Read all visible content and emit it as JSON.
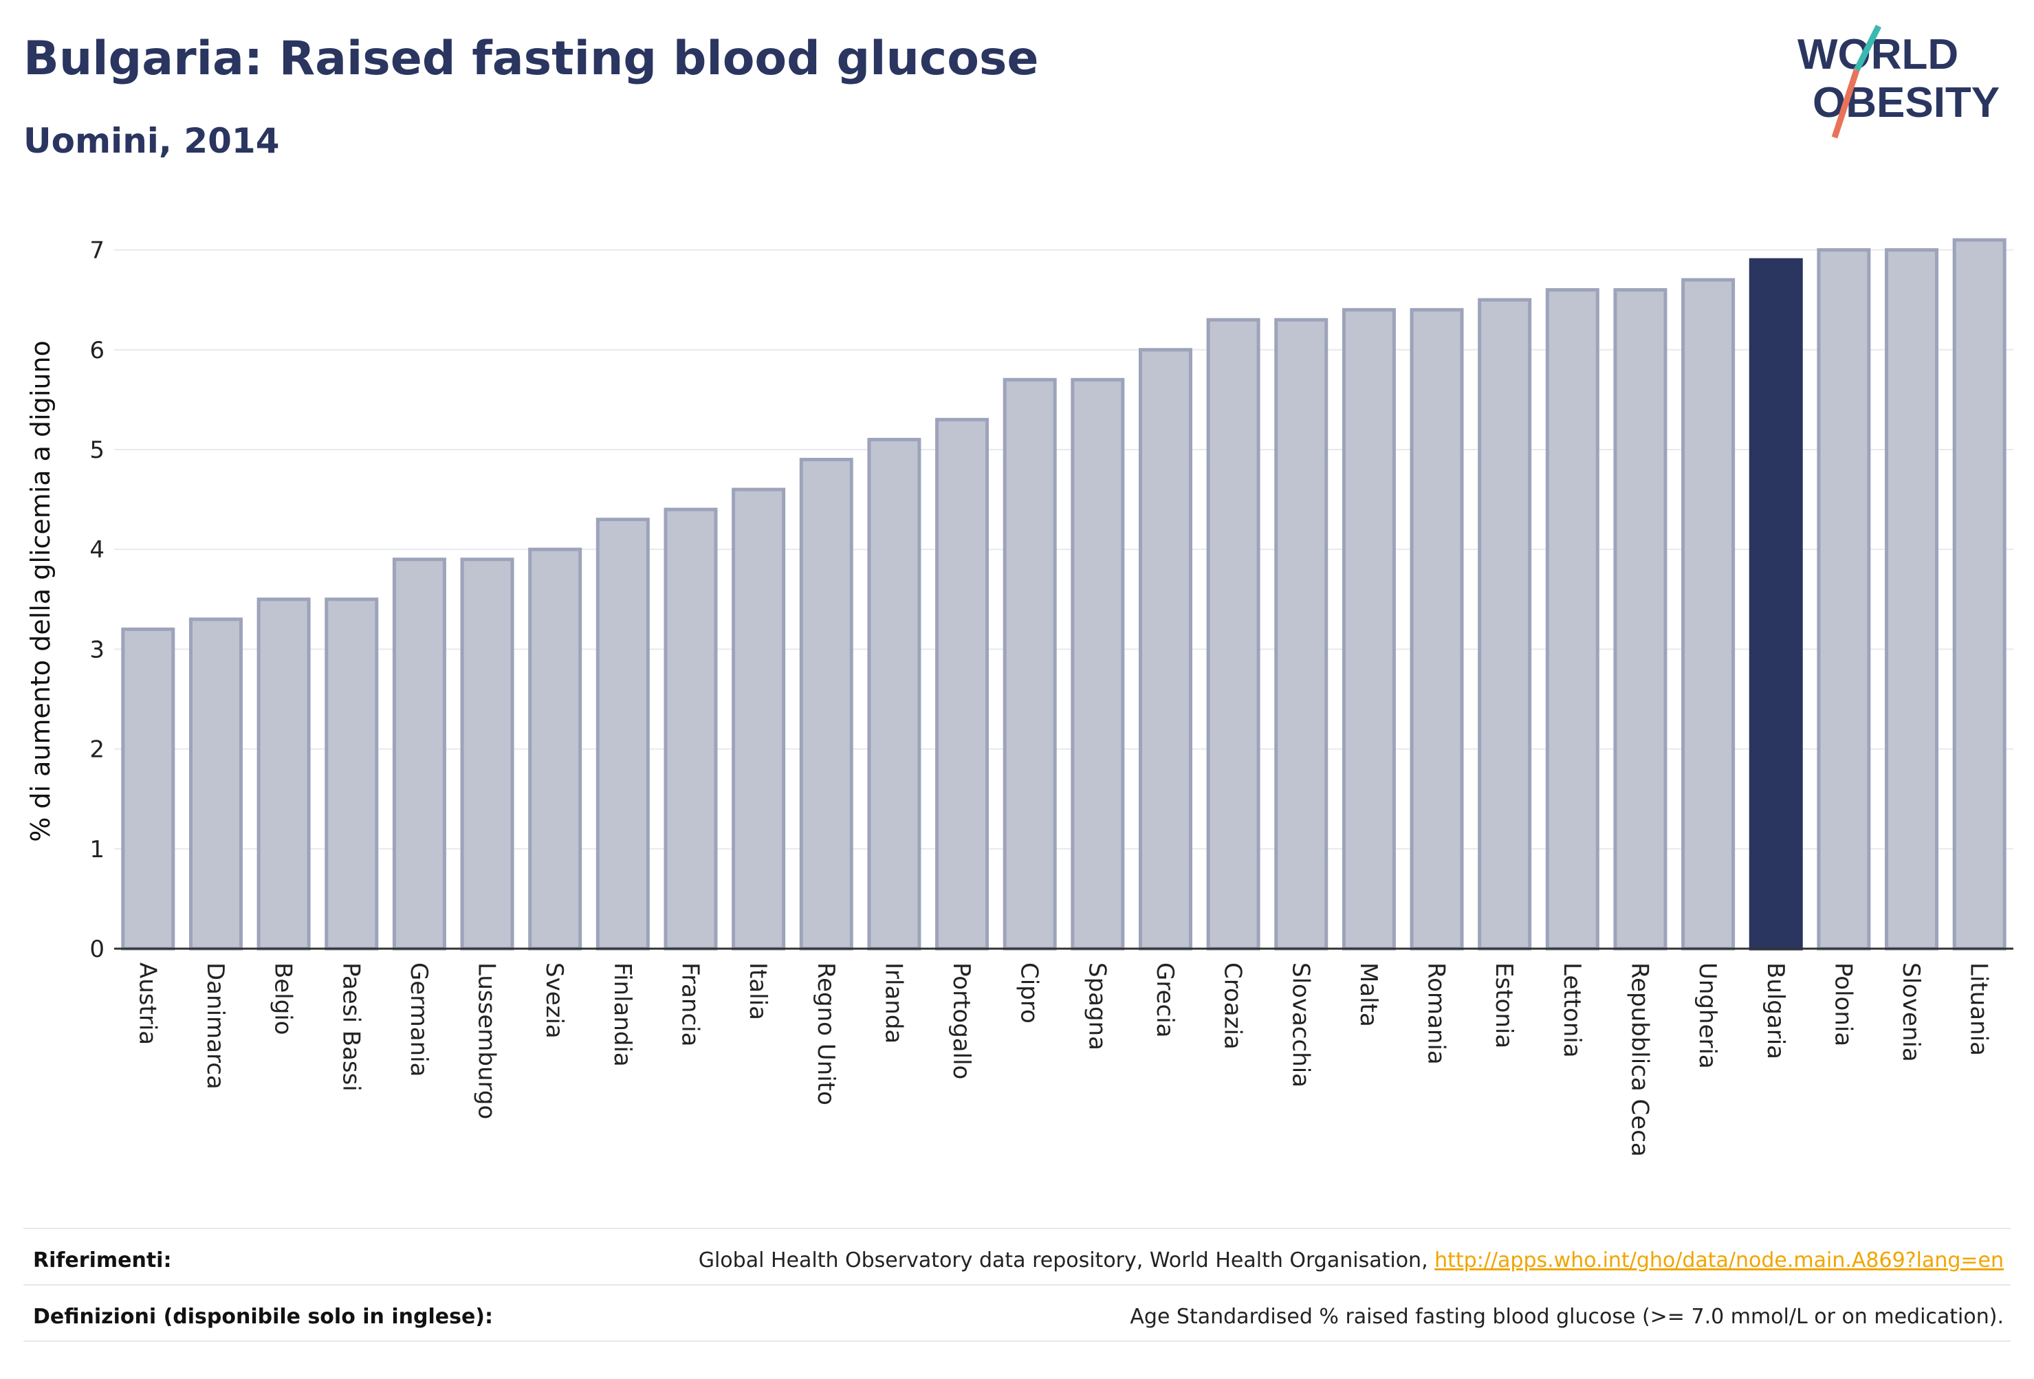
{
  "header": {
    "title": "Bulgaria: Raised fasting blood glucose",
    "subtitle": "Uomini, 2014"
  },
  "logo": {
    "line1": "WORLD",
    "line2": "OBESITY",
    "colors": {
      "text": "#2a3560",
      "slash_red": "#e8735a",
      "slash_teal": "#3bb8b0"
    }
  },
  "colors": {
    "bar_default_fill": "#c0c4d0",
    "bar_default_stroke": "#9da3ba",
    "bar_highlight": "#2a3560",
    "grid": "#e8e9ee",
    "axis": "#333333"
  },
  "chart_data": {
    "type": "bar",
    "ylabel": "% di aumento della glicemia a digiuno",
    "ylim": [
      0,
      7.3
    ],
    "yticks": [
      0,
      1,
      2,
      3,
      4,
      5,
      6,
      7
    ],
    "grid": true,
    "highlight": "Bulgaria",
    "categories": [
      "Austria",
      "Danimarca",
      "Belgio",
      "Paesi Bassi",
      "Germania",
      "Lussemburgo",
      "Svezia",
      "Finlandia",
      "Francia",
      "Italia",
      "Regno Unito",
      "Irlanda",
      "Portogallo",
      "Cipro",
      "Spagna",
      "Grecia",
      "Croazia",
      "Slovacchia",
      "Malta",
      "Romania",
      "Estonia",
      "Lettonia",
      "Repubblica Ceca",
      "Ungheria",
      "Bulgaria",
      "Polonia",
      "Slovenia",
      "Lituania"
    ],
    "values": [
      3.2,
      3.3,
      3.5,
      3.5,
      3.9,
      3.9,
      4.0,
      4.3,
      4.4,
      4.6,
      4.9,
      5.1,
      5.3,
      5.7,
      5.7,
      6.0,
      6.3,
      6.3,
      6.4,
      6.4,
      6.5,
      6.6,
      6.6,
      6.7,
      6.9,
      7.0,
      7.0,
      7.1
    ]
  },
  "footer": {
    "references_label": "Riferimenti:",
    "references_text": "Global Health Observatory data repository, World Health Organisation, ",
    "references_link": "http://apps.who.int/gho/data/node.main.A869?lang=en",
    "definitions_label": "Definizioni (disponibile solo in inglese):",
    "definitions_text": "Age Standardised % raised fasting blood glucose (>= 7.0 mmol/L or on medication)."
  }
}
